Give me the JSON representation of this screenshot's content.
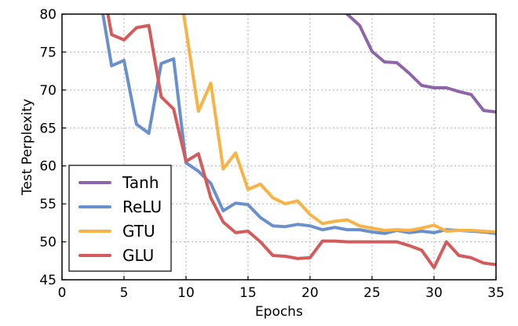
{
  "chart_data": {
    "type": "line",
    "title": "",
    "xlabel": "Epochs",
    "ylabel": "Test Perplexity",
    "xlim": [
      0,
      35
    ],
    "ylim": [
      45,
      80
    ],
    "xticks": [
      "0",
      "5",
      "10",
      "15",
      "20",
      "25",
      "30",
      "35"
    ],
    "yticks": [
      "45",
      "50",
      "55",
      "60",
      "65",
      "70",
      "75",
      "80"
    ],
    "grid": true,
    "legend_position": "lower-left",
    "series": [
      {
        "name": "Tanh",
        "color": "#8e65a9",
        "x": [
          23,
          24,
          25,
          26,
          27,
          28,
          29,
          30,
          31,
          32,
          33,
          34,
          35
        ],
        "y": [
          80,
          78.5,
          75.1,
          73.7,
          73.6,
          72.2,
          70.6,
          70.3,
          70.3,
          69.8,
          69.4,
          67.3,
          67.1
        ]
      },
      {
        "name": "ReLU",
        "color": "#6a8fcd",
        "x": [
          3.3,
          4,
          5,
          6,
          7,
          8,
          9,
          10,
          11,
          12,
          13,
          14,
          15,
          16,
          17,
          18,
          19,
          20,
          21,
          22,
          23,
          24,
          25,
          26,
          27,
          28,
          29,
          30,
          31,
          32,
          33,
          34,
          35
        ],
        "y": [
          80,
          73.2,
          73.9,
          65.5,
          64.3,
          73.5,
          74.1,
          60.4,
          59.3,
          57.7,
          54.1,
          55.1,
          54.9,
          53.2,
          52.1,
          52.0,
          52.3,
          52.1,
          51.6,
          51.9,
          51.6,
          51.6,
          51.3,
          51.1,
          51.5,
          51.2,
          51.4,
          51.2,
          51.6,
          51.5,
          51.4,
          51.3,
          51.1
        ]
      },
      {
        "name": "GTU",
        "color": "#f7b345",
        "x": [
          9.8,
          10,
          11,
          12,
          13,
          14,
          15,
          16,
          17,
          18,
          19,
          20,
          21,
          22,
          23,
          24,
          25,
          26,
          27,
          28,
          29,
          30,
          31,
          32,
          33,
          34,
          35
        ],
        "y": [
          80,
          78.0,
          67.2,
          70.9,
          59.6,
          61.7,
          56.9,
          57.6,
          55.8,
          55.0,
          55.4,
          53.6,
          52.4,
          52.7,
          52.9,
          52.1,
          51.8,
          51.5,
          51.6,
          51.5,
          51.8,
          52.2,
          51.4,
          51.5,
          51.5,
          51.4,
          51.3
        ]
      },
      {
        "name": "GLU",
        "color": "#d45b5b",
        "x": [
          3.7,
          4,
          5,
          6,
          7,
          8,
          9,
          10,
          11,
          12,
          13,
          14,
          15,
          16,
          17,
          18,
          19,
          20,
          21,
          22,
          23,
          24,
          25,
          26,
          27,
          28,
          29,
          30,
          31,
          32,
          33,
          34,
          35
        ],
        "y": [
          80,
          77.3,
          76.6,
          78.2,
          78.5,
          69.1,
          67.5,
          60.6,
          61.6,
          55.8,
          52.6,
          51.2,
          51.4,
          50.0,
          48.2,
          48.1,
          47.8,
          47.9,
          50.1,
          50.1,
          50.0,
          50.0,
          50.0,
          50.0,
          50.0,
          49.5,
          48.9,
          46.6,
          50.0,
          48.2,
          47.9,
          47.2,
          47.0
        ]
      }
    ]
  }
}
